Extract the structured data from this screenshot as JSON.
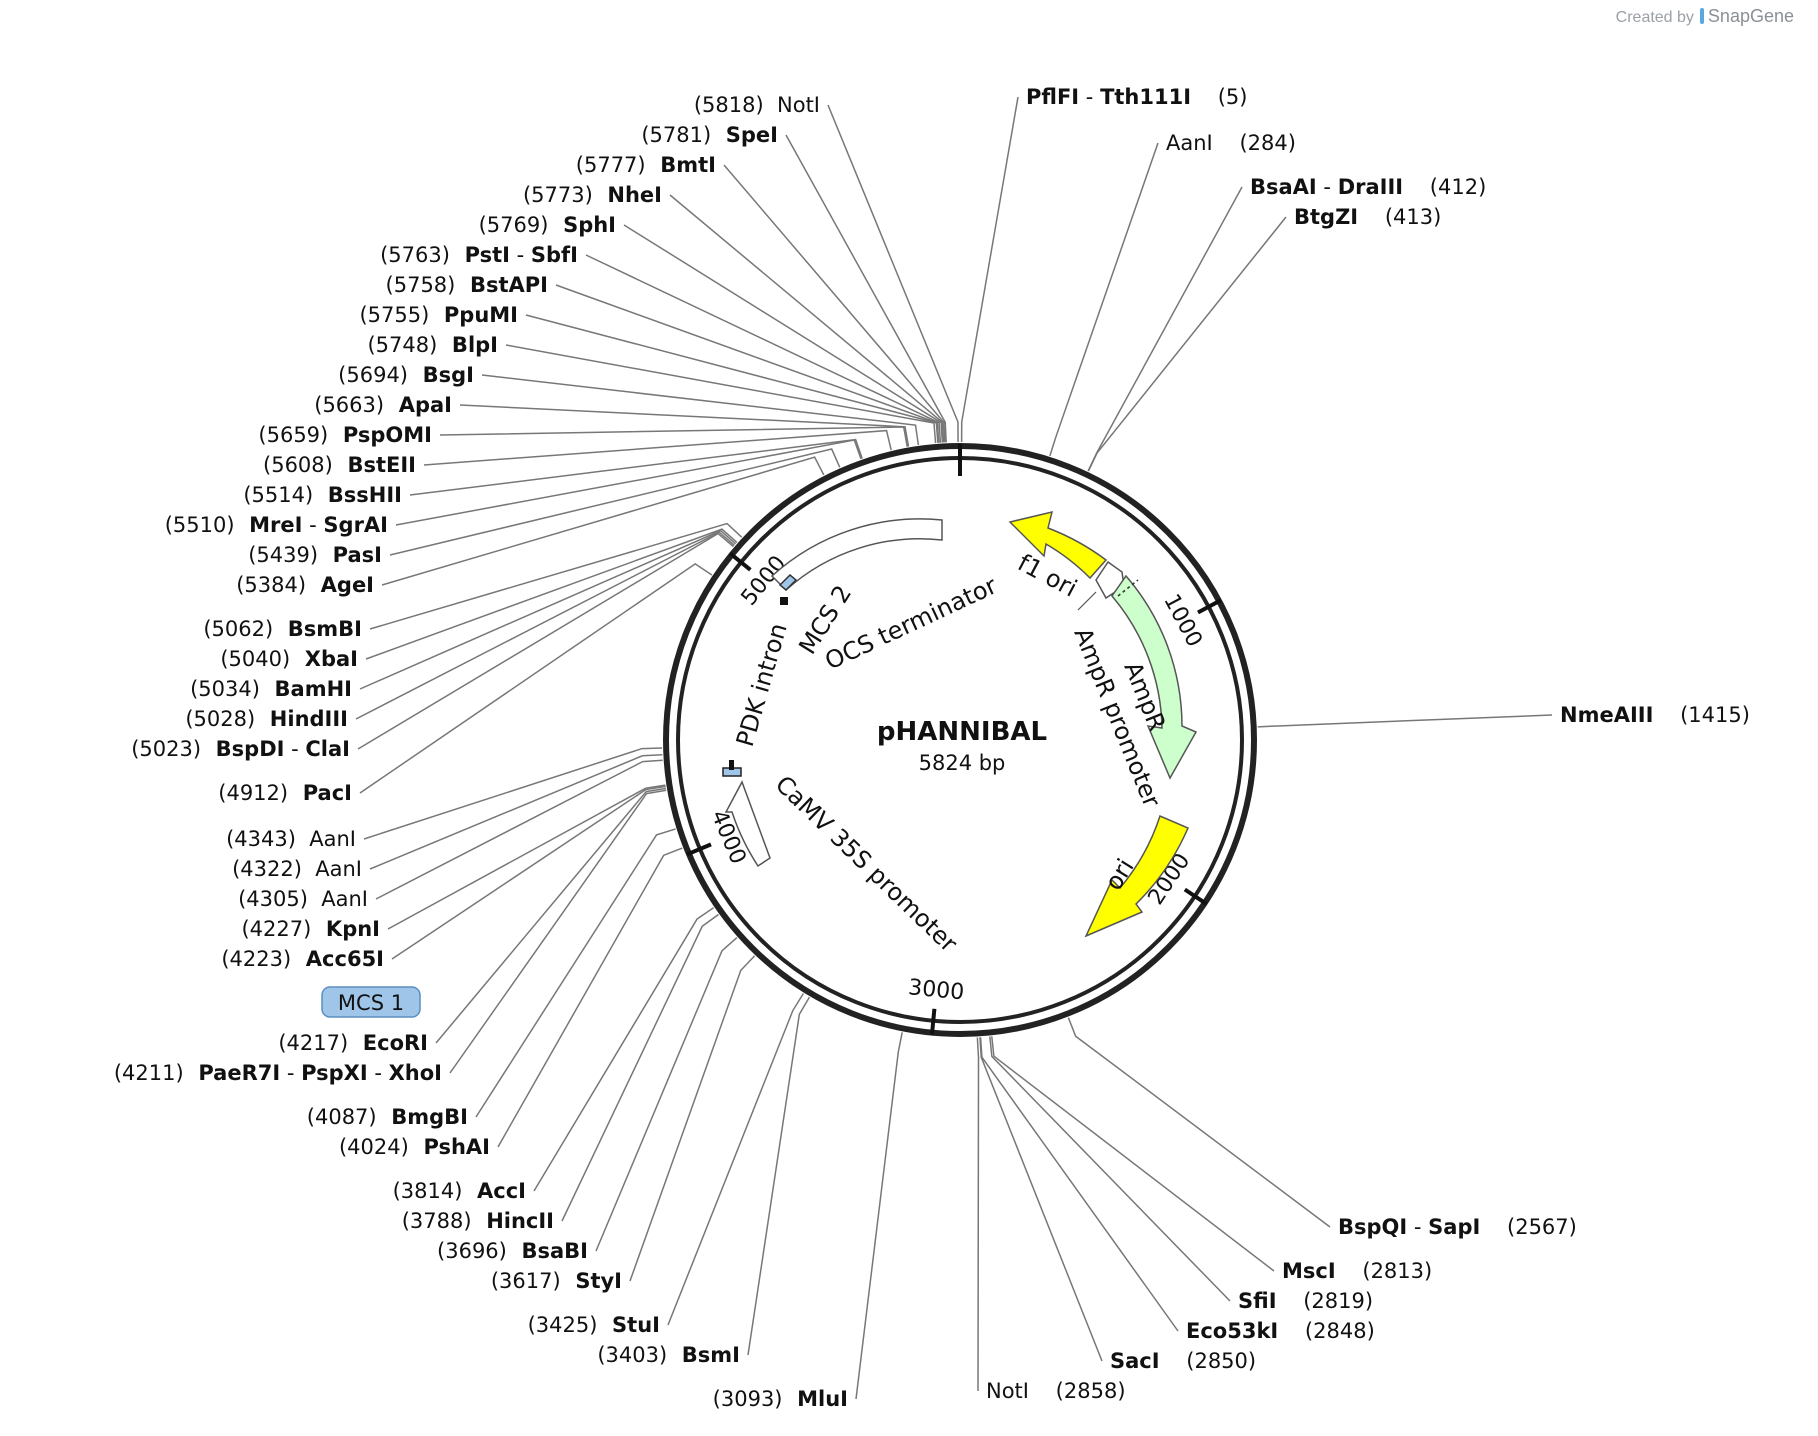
{
  "branding": {
    "created_by": "Created by",
    "product": "SnapGene"
  },
  "plasmid": {
    "name": "pHANNIBAL",
    "size_label": "5824 bp",
    "length_bp": 5824
  },
  "ticks": [
    {
      "bp": 1000,
      "label": "1000"
    },
    {
      "bp": 2000,
      "label": "2000"
    },
    {
      "bp": 3000,
      "label": "3000"
    },
    {
      "bp": 4000,
      "label": "4000"
    },
    {
      "bp": 5000,
      "label": "5000"
    }
  ],
  "features": [
    {
      "name": "f1 ori",
      "color": "#ffff00"
    },
    {
      "name": "AmpR promoter",
      "color": "#ffffff"
    },
    {
      "name": "AmpR",
      "color": "#ccffcc"
    },
    {
      "name": "ori",
      "color": "#ffff00"
    },
    {
      "name": "CaMV 35S promoter",
      "color": "#ffffff"
    },
    {
      "name": "PDK intron",
      "color": "#ffffff"
    },
    {
      "name": "MCS 2",
      "color": "#9fc5e8"
    },
    {
      "name": "OCS terminator",
      "color": "#ffffff"
    }
  ],
  "mcs1_label": "MCS 1",
  "sites": [
    {
      "pos": "(5818)",
      "names": [
        "NotI"
      ],
      "bold": false,
      "bp": 5818
    },
    {
      "pos": "(5781)",
      "names": [
        "SpeI"
      ],
      "bold": true,
      "bp": 5781
    },
    {
      "pos": "(5777)",
      "names": [
        "BmtI"
      ],
      "bold": true,
      "bp": 5777
    },
    {
      "pos": "(5773)",
      "names": [
        "NheI"
      ],
      "bold": true,
      "bp": 5773
    },
    {
      "pos": "(5769)",
      "names": [
        "SphI"
      ],
      "bold": true,
      "bp": 5769
    },
    {
      "pos": "(5763)",
      "names": [
        "PstI",
        "SbfI"
      ],
      "bold": true,
      "bp": 5763
    },
    {
      "pos": "(5758)",
      "names": [
        "BstAPI"
      ],
      "bold": true,
      "bp": 5758
    },
    {
      "pos": "(5755)",
      "names": [
        "PpuMI"
      ],
      "bold": true,
      "bp": 5755
    },
    {
      "pos": "(5748)",
      "names": [
        "BlpI"
      ],
      "bold": true,
      "bp": 5748
    },
    {
      "pos": "(5694)",
      "names": [
        "BsgI"
      ],
      "bold": true,
      "bp": 5694
    },
    {
      "pos": "(5663)",
      "names": [
        "ApaI"
      ],
      "bold": true,
      "bp": 5663
    },
    {
      "pos": "(5659)",
      "names": [
        "PspOMI"
      ],
      "bold": true,
      "bp": 5659
    },
    {
      "pos": "(5608)",
      "names": [
        "BstEII"
      ],
      "bold": true,
      "bp": 5608
    },
    {
      "pos": "(5514)",
      "names": [
        "BssHII"
      ],
      "bold": true,
      "bp": 5514
    },
    {
      "pos": "(5510)",
      "names": [
        "MreI",
        "SgrAI"
      ],
      "bold": true,
      "bp": 5510
    },
    {
      "pos": "(5439)",
      "names": [
        "PasI"
      ],
      "bold": true,
      "bp": 5439
    },
    {
      "pos": "(5384)",
      "names": [
        "AgeI"
      ],
      "bold": true,
      "bp": 5384
    },
    {
      "pos": "(5062)",
      "names": [
        "BsmBI"
      ],
      "bold": true,
      "bp": 5062
    },
    {
      "pos": "(5040)",
      "names": [
        "XbaI"
      ],
      "bold": true,
      "bp": 5040
    },
    {
      "pos": "(5034)",
      "names": [
        "BamHI"
      ],
      "bold": true,
      "bp": 5034
    },
    {
      "pos": "(5028)",
      "names": [
        "HindIII"
      ],
      "bold": true,
      "bp": 5028
    },
    {
      "pos": "(5023)",
      "names": [
        "BspDI",
        "ClaI"
      ],
      "bold": true,
      "bp": 5023
    },
    {
      "pos": "(4912)",
      "names": [
        "PacI"
      ],
      "bold": true,
      "bp": 4912
    },
    {
      "pos": "(4343)",
      "names": [
        "AanI"
      ],
      "bold": false,
      "bp": 4343
    },
    {
      "pos": "(4322)",
      "names": [
        "AanI"
      ],
      "bold": false,
      "bp": 4322
    },
    {
      "pos": "(4305)",
      "names": [
        "AanI"
      ],
      "bold": false,
      "bp": 4305
    },
    {
      "pos": "(4227)",
      "names": [
        "KpnI"
      ],
      "bold": true,
      "bp": 4227
    },
    {
      "pos": "(4223)",
      "names": [
        "Acc65I"
      ],
      "bold": true,
      "bp": 4223
    },
    {
      "pos": "(4217)",
      "names": [
        "EcoRI"
      ],
      "bold": true,
      "bp": 4217
    },
    {
      "pos": "(4211)",
      "names": [
        "PaeR7I",
        "PspXI",
        "XhoI"
      ],
      "bold": true,
      "bp": 4211
    },
    {
      "pos": "(4087)",
      "names": [
        "BmgBI"
      ],
      "bold": true,
      "bp": 4087
    },
    {
      "pos": "(4024)",
      "names": [
        "PshAI"
      ],
      "bold": true,
      "bp": 4024
    },
    {
      "pos": "(3814)",
      "names": [
        "AccI"
      ],
      "bold": true,
      "bp": 3814
    },
    {
      "pos": "(3788)",
      "names": [
        "HincII"
      ],
      "bold": true,
      "bp": 3788
    },
    {
      "pos": "(3696)",
      "names": [
        "BsaBI"
      ],
      "bold": true,
      "bp": 3696
    },
    {
      "pos": "(3617)",
      "names": [
        "StyI"
      ],
      "bold": true,
      "bp": 3617
    },
    {
      "pos": "(3425)",
      "names": [
        "StuI"
      ],
      "bold": true,
      "bp": 3425
    },
    {
      "pos": "(3403)",
      "names": [
        "BsmI"
      ],
      "bold": true,
      "bp": 3403
    },
    {
      "pos": "(3093)",
      "names": [
        "MluI"
      ],
      "bold": true,
      "bp": 3093
    },
    {
      "pos": "(2858)",
      "names": [
        "NotI"
      ],
      "bold": false,
      "bp": 2858
    },
    {
      "pos": "(2850)",
      "names": [
        "SacI"
      ],
      "bold": true,
      "bp": 2850
    },
    {
      "pos": "(2848)",
      "names": [
        "Eco53kI"
      ],
      "bold": true,
      "bp": 2848
    },
    {
      "pos": "(2819)",
      "names": [
        "SfiI"
      ],
      "bold": true,
      "bp": 2819
    },
    {
      "pos": "(2813)",
      "names": [
        "MscI"
      ],
      "bold": true,
      "bp": 2813
    },
    {
      "pos": "(2567)",
      "names": [
        "BspQI",
        "SapI"
      ],
      "bold": true,
      "bp": 2567
    },
    {
      "pos": "(1415)",
      "names": [
        "NmeAIII"
      ],
      "bold": true,
      "bp": 1415
    },
    {
      "pos": "(413)",
      "names": [
        "BtgZI"
      ],
      "bold": true,
      "bp": 413
    },
    {
      "pos": "(412)",
      "names": [
        "BsaAI",
        "DraIII"
      ],
      "bold": true,
      "bp": 412
    },
    {
      "pos": "(284)",
      "names": [
        "AanI"
      ],
      "bold": false,
      "bp": 284
    },
    {
      "pos": "(5)",
      "names": [
        "PflFI",
        "Tth111I"
      ],
      "bold": true,
      "bp": 5
    }
  ]
}
